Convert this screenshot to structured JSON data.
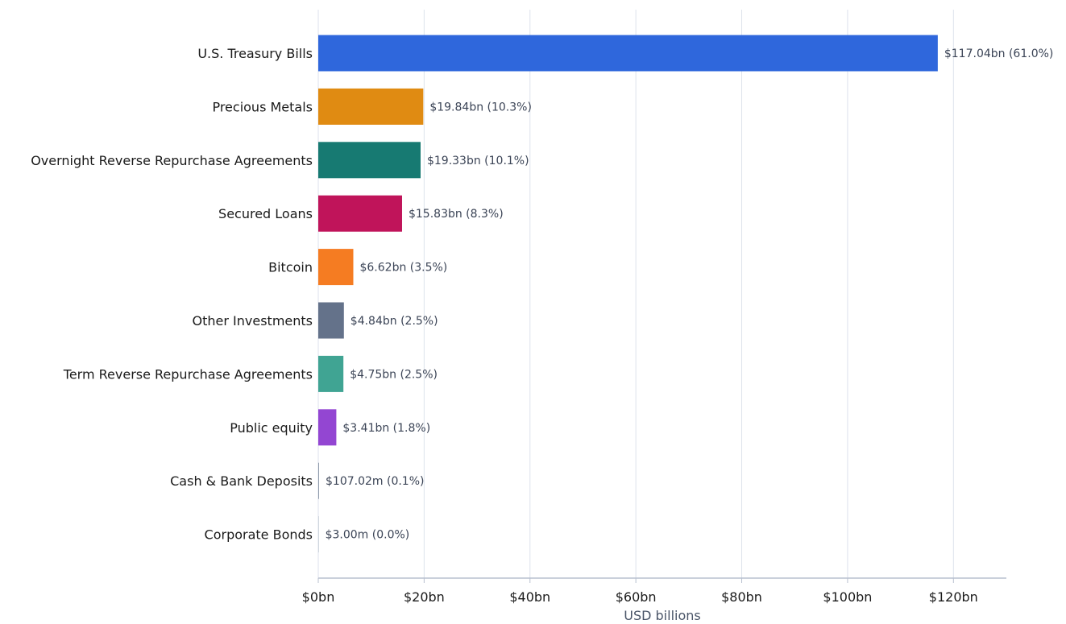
{
  "chart_data": {
    "type": "bar",
    "orientation": "horizontal",
    "title": "",
    "xlabel": "USD billions",
    "ylabel": "",
    "xlim": [
      0,
      130
    ],
    "grid": "vertical",
    "legend": "none",
    "x_ticks": [
      {
        "value": 0,
        "label": "$0bn"
      },
      {
        "value": 20,
        "label": "$20bn"
      },
      {
        "value": 40,
        "label": "$40bn"
      },
      {
        "value": 60,
        "label": "$60bn"
      },
      {
        "value": 80,
        "label": "$80bn"
      },
      {
        "value": 100,
        "label": "$100bn"
      },
      {
        "value": 120,
        "label": "$120bn"
      }
    ],
    "bars": [
      {
        "category": "U.S. Treasury Bills",
        "value": 117.04,
        "label": "$117.04bn (61.0%)",
        "color": "#2f67dc"
      },
      {
        "category": "Precious Metals",
        "value": 19.84,
        "label": "$19.84bn (10.3%)",
        "color": "#e08b12"
      },
      {
        "category": "Overnight Reverse Repurchase Agreements",
        "value": 19.33,
        "label": "$19.33bn (10.1%)",
        "color": "#177a72"
      },
      {
        "category": "Secured Loans",
        "value": 15.83,
        "label": "$15.83bn (8.3%)",
        "color": "#c0145a"
      },
      {
        "category": "Bitcoin",
        "value": 6.62,
        "label": "$6.62bn (3.5%)",
        "color": "#f57c22"
      },
      {
        "category": "Other Investments",
        "value": 4.84,
        "label": "$4.84bn (2.5%)",
        "color": "#64728a"
      },
      {
        "category": "Term Reverse Repurchase Agreements",
        "value": 4.75,
        "label": "$4.75bn (2.5%)",
        "color": "#40a493"
      },
      {
        "category": "Public equity",
        "value": 3.41,
        "label": "$3.41bn (1.8%)",
        "color": "#9346d2"
      },
      {
        "category": "Cash & Bank Deposits",
        "value": 0.10702,
        "label": "$107.02m (0.1%)",
        "color": "#8e9aaa"
      },
      {
        "category": "Corporate Bonds",
        "value": 0.003,
        "label": "$3.00m (0.0%)",
        "color": "#b0bac8"
      }
    ]
  }
}
